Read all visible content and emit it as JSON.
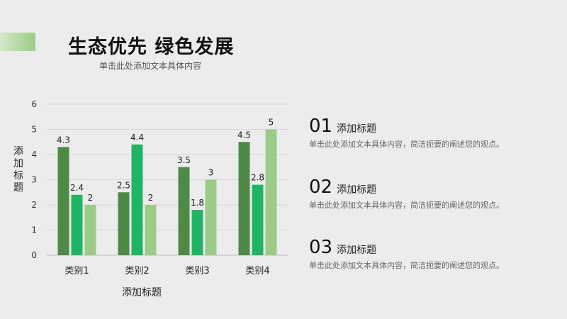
{
  "slide": {
    "title": "生态优先 绿色发展",
    "subtitle": "单击此处添加文本具体内容"
  },
  "colors": {
    "accent": "#9ccb87",
    "series1": "#4e8a46",
    "series2": "#1fb565",
    "series3": "#9ccb87"
  },
  "chart_data": {
    "type": "bar",
    "title": "",
    "xlabel": "添加标题",
    "ylabel": "添加标题",
    "categories": [
      "类别1",
      "类别2",
      "类别3",
      "类别4"
    ],
    "series": [
      {
        "values": [
          4.3,
          2.5,
          3.5,
          4.5
        ]
      },
      {
        "values": [
          2.4,
          4.4,
          1.8,
          2.8
        ]
      },
      {
        "values": [
          2,
          2,
          3,
          5
        ]
      }
    ],
    "ylim": [
      0,
      6
    ],
    "yticks": [
      0,
      1,
      2,
      3,
      4,
      5,
      6
    ],
    "grid": true,
    "legend": "none"
  },
  "items": [
    {
      "num": "01",
      "title": "添加标题",
      "desc": "单击此处添加文本具体内容，简洁扼要的阐述您的观点。"
    },
    {
      "num": "02",
      "title": "添加标题",
      "desc": "单击此处添加文本具体内容，简洁扼要的阐述您的观点。"
    },
    {
      "num": "03",
      "title": "添加标题",
      "desc": "单击此处添加文本具体内容，简洁扼要的阐述您的观点。"
    }
  ]
}
